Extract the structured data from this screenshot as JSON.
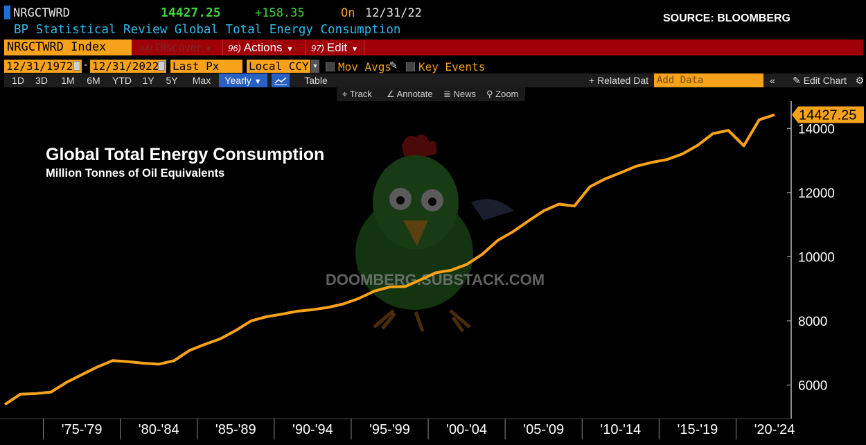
{
  "header": {
    "ticker": "NRGCTWRD",
    "price": "14427.25",
    "change": "+158.35",
    "on_label": "On",
    "date": "12/31/22",
    "source": "SOURCE: BLOOMBERG",
    "description": "BP Statistical Review Global Total Energy Consumption"
  },
  "command_bar": {
    "index_label": "NRGCTWRD Index",
    "discover_num": "94)",
    "discover_label": "Discover",
    "actions_num": "96)",
    "actions_label": "Actions",
    "edit_num": "97)",
    "edit_label": "Edit"
  },
  "inputs": {
    "start_date": "12/31/1972",
    "end_date": "12/31/2022",
    "field": "Last Px",
    "currency": "Local CCY",
    "mov_avgs": "Mov Avgs",
    "key_events": "Key Events"
  },
  "toolbar": {
    "ranges": [
      "1D",
      "3D",
      "1M",
      "6M",
      "YTD",
      "1Y",
      "5Y",
      "Max"
    ],
    "frequency": "Yearly",
    "table": "Table",
    "related": "+ Related Dat",
    "add_data_placeholder": "Add Data",
    "edit_chart": "Edit Chart"
  },
  "sub_toolbar": {
    "track": "Track",
    "annotate": "Annotate",
    "news": "News",
    "zoom": "Zoom"
  },
  "watermark": {
    "text": "DOOMBERG.SUBSTACK.COM"
  },
  "colors": {
    "series": "#f7a21b",
    "up": "#3fd13f",
    "accent_blue": "#33b8e8",
    "command_bar": "#a00008"
  },
  "chart_data": {
    "type": "line",
    "title": "Global Total Energy Consumption",
    "subtitle": "Million Tonnes of Oil Equivalents",
    "last_value_label": "14427.25",
    "ylim": [
      4950,
      14850
    ],
    "y_ticks": [
      6000,
      8000,
      10000,
      12000,
      14000
    ],
    "x_tick_labels": [
      "'75-'79",
      "'80-'84",
      "'85-'89",
      "'90-'94",
      "'95-'99",
      "'00-'04",
      "'05-'09",
      "'10-'14",
      "'15-'19",
      "'20-'24"
    ],
    "grid": false,
    "series": [
      {
        "x": [
          1972,
          1973,
          1974,
          1975,
          1976,
          1977,
          1978,
          1979,
          1980,
          1981,
          1982,
          1983,
          1984,
          1985,
          1986,
          1987,
          1988,
          1989,
          1990,
          1991,
          1992,
          1993,
          1994,
          1995,
          1996,
          1997,
          1998,
          1999,
          2000,
          2001,
          2002,
          2003,
          2004,
          2005,
          2006,
          2007,
          2008,
          2009,
          2010,
          2011,
          2012,
          2013,
          2014,
          2015,
          2016,
          2017,
          2018,
          2019,
          2020,
          2021,
          2022
        ],
        "values": [
          5390,
          5710,
          5730,
          5780,
          6080,
          6320,
          6560,
          6760,
          6730,
          6680,
          6650,
          6760,
          7080,
          7270,
          7440,
          7700,
          8000,
          8130,
          8210,
          8300,
          8350,
          8420,
          8530,
          8700,
          8930,
          9060,
          9070,
          9280,
          9500,
          9580,
          9760,
          10070,
          10500,
          10780,
          11110,
          11430,
          11640,
          11580,
          12180,
          12430,
          12620,
          12820,
          12940,
          13030,
          13200,
          13470,
          13840,
          13940,
          13460,
          14270,
          14427.25
        ]
      }
    ]
  }
}
